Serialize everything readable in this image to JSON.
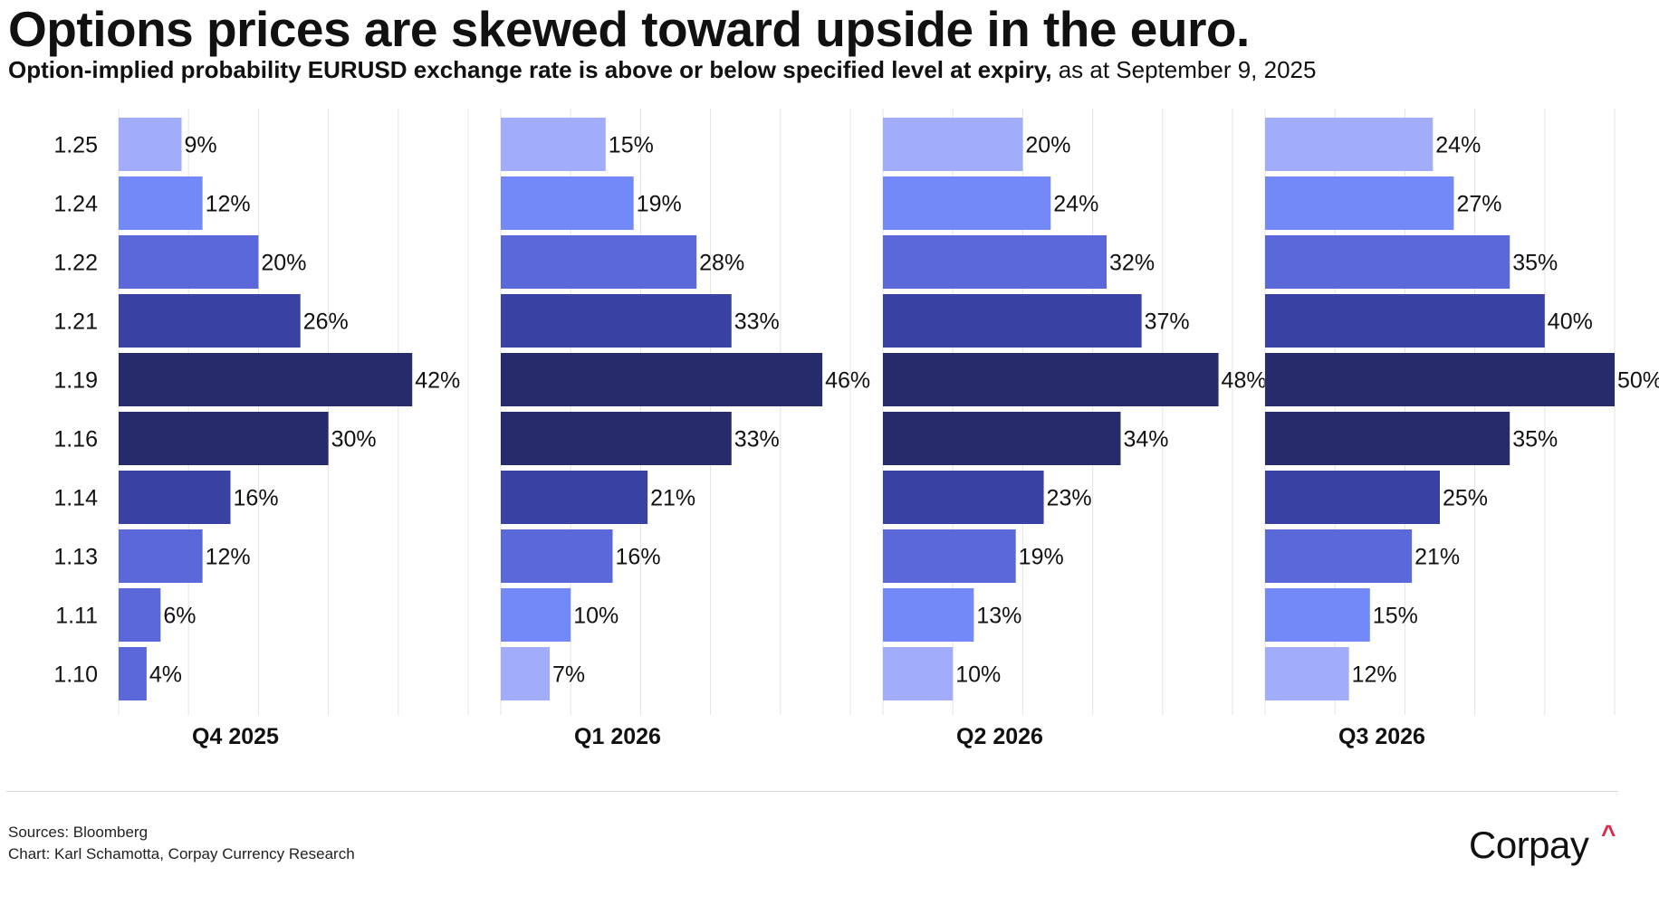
{
  "title": "Options prices are skewed toward upside in the euro.",
  "subtitle_bold": "Option-implied probability EURUSD exchange rate is above or below specified level at expiry,",
  "subtitle_rest": " as at September 9, 2025",
  "footer": {
    "sources": "Sources: Bloomberg",
    "credit": "Chart: Karl Schamotta, Corpay Currency Research"
  },
  "logo": {
    "text": "Corpay",
    "caret": "^"
  },
  "chart_data": {
    "type": "bar",
    "orientation": "horizontal",
    "categories": [
      "1.25",
      "1.24",
      "1.22",
      "1.21",
      "1.19",
      "1.16",
      "1.14",
      "1.13",
      "1.11",
      "1.10"
    ],
    "value_suffix": "%",
    "xlim": [
      0,
      50
    ],
    "grid": true,
    "bar_colors": [
      "#a1acfb",
      "#7489f8",
      "#5a68d9",
      "#3941a2",
      "#252b6b",
      "#252b6b",
      "#3941a2",
      "#5a68d9",
      "#7489f8",
      "#a1acfb"
    ],
    "panels": [
      {
        "label": "Q4 2025",
        "values": [
          9,
          12,
          20,
          26,
          42,
          30,
          16,
          12,
          6,
          4
        ]
      },
      {
        "label": "Q1 2026",
        "values": [
          15,
          19,
          28,
          33,
          46,
          33,
          21,
          16,
          10,
          7
        ]
      },
      {
        "label": "Q2 2026",
        "values": [
          20,
          24,
          32,
          37,
          48,
          34,
          23,
          19,
          13,
          10
        ]
      },
      {
        "label": "Q3 2026",
        "values": [
          24,
          27,
          35,
          40,
          50,
          35,
          25,
          21,
          15,
          12
        ]
      }
    ],
    "first_panel_colors": [
      "#a1acfb",
      "#7489f8",
      "#5a68d9",
      "#3941a2",
      "#252b6b",
      "#252b6b",
      "#3941a2",
      "#5a68d9",
      "#5a68d9",
      "#5a68d9"
    ]
  }
}
